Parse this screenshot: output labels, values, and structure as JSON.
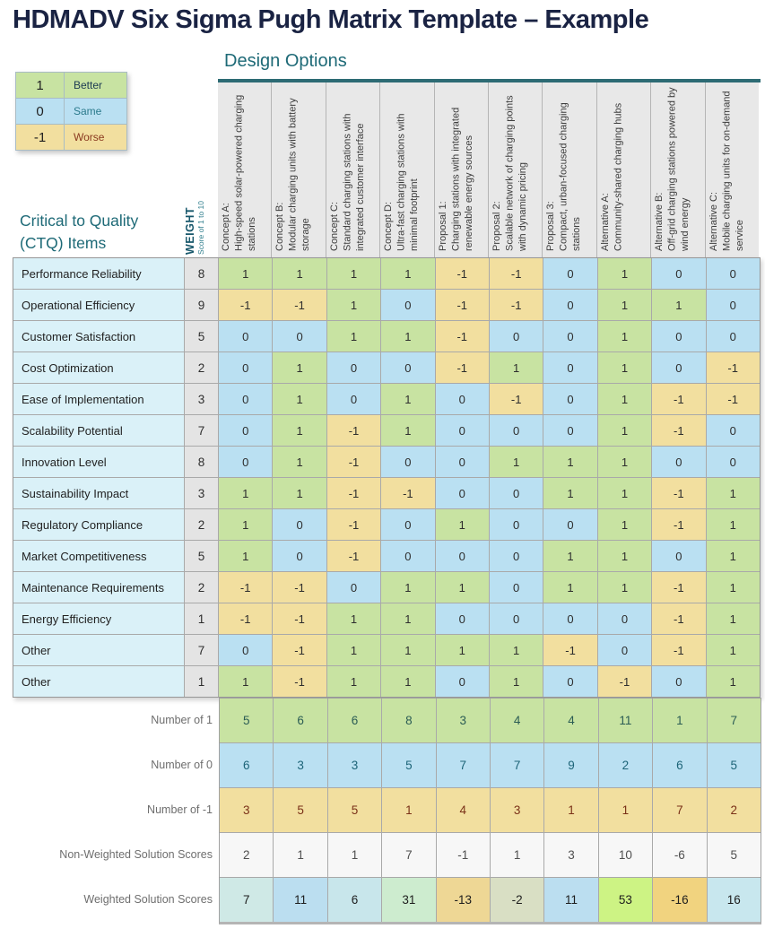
{
  "title": "HDMADV Six Sigma Pugh Matrix Template – Example",
  "design_options_label": "Design Options",
  "ctq_heading": "Critical to Quality (CTQ) Items",
  "weight_heading": {
    "title": "WEIGHT",
    "subtitle": "Score of 1 to 10"
  },
  "legend": [
    {
      "value": "1",
      "label": "Better",
      "style": "better",
      "label_color": "#1d3b53"
    },
    {
      "value": "0",
      "label": "Same",
      "style": "same",
      "label_color": "#2b7a8c"
    },
    {
      "value": "-1",
      "label": "Worse",
      "style": "worse",
      "label_color": "#8a3a20"
    }
  ],
  "design_options": [
    {
      "name": "Concept A:",
      "description": "High-speed solar-powered charging stations"
    },
    {
      "name": "Concept B:",
      "description": "Modular charging units with battery storage"
    },
    {
      "name": "Concept C:",
      "description": "Standard charging stations with integrated customer interface"
    },
    {
      "name": "Concept D:",
      "description": "Ultra-fast charging stations with minimal footprint"
    },
    {
      "name": "Proposal 1:",
      "description": "Charging stations with integrated renewable energy sources"
    },
    {
      "name": "Proposal 2:",
      "description": "Scalable network of charging points with dynamic pricing"
    },
    {
      "name": "Proposal 3:",
      "description": "Compact, urban-focused charging stations"
    },
    {
      "name": "Alternative A:",
      "description": "Community-shared charging hubs"
    },
    {
      "name": "Alternative B:",
      "description": "Off-grid charging stations powered by wind energy"
    },
    {
      "name": "Alternative C:",
      "description": "Mobile charging units for on-demand service"
    }
  ],
  "ctq_rows": [
    {
      "label": "Performance Reliability",
      "weight": 8,
      "scores": [
        1,
        1,
        1,
        1,
        -1,
        -1,
        0,
        1,
        0,
        0
      ]
    },
    {
      "label": "Operational Efficiency",
      "weight": 9,
      "scores": [
        -1,
        -1,
        1,
        0,
        -1,
        -1,
        0,
        1,
        1,
        0
      ]
    },
    {
      "label": "Customer Satisfaction",
      "weight": 5,
      "scores": [
        0,
        0,
        1,
        1,
        -1,
        0,
        0,
        1,
        0,
        0
      ]
    },
    {
      "label": "Cost Optimization",
      "weight": 2,
      "scores": [
        0,
        1,
        0,
        0,
        -1,
        1,
        0,
        1,
        0,
        -1
      ]
    },
    {
      "label": "Ease of Implementation",
      "weight": 3,
      "scores": [
        0,
        1,
        0,
        1,
        0,
        -1,
        0,
        1,
        -1,
        -1
      ]
    },
    {
      "label": "Scalability Potential",
      "weight": 7,
      "scores": [
        0,
        1,
        -1,
        1,
        0,
        0,
        0,
        1,
        -1,
        0
      ]
    },
    {
      "label": "Innovation Level",
      "weight": 8,
      "scores": [
        0,
        1,
        -1,
        0,
        0,
        1,
        1,
        1,
        0,
        0
      ]
    },
    {
      "label": "Sustainability Impact",
      "weight": 3,
      "scores": [
        1,
        1,
        -1,
        -1,
        0,
        0,
        1,
        1,
        -1,
        1
      ]
    },
    {
      "label": "Regulatory Compliance",
      "weight": 2,
      "scores": [
        1,
        0,
        -1,
        0,
        1,
        0,
        0,
        1,
        -1,
        1
      ]
    },
    {
      "label": "Market Competitiveness",
      "weight": 5,
      "scores": [
        1,
        0,
        -1,
        0,
        0,
        0,
        1,
        1,
        0,
        1
      ]
    },
    {
      "label": "Maintenance Requirements",
      "weight": 2,
      "scores": [
        -1,
        -1,
        0,
        1,
        1,
        0,
        1,
        1,
        -1,
        1
      ]
    },
    {
      "label": "Energy Efficiency",
      "weight": 1,
      "scores": [
        -1,
        -1,
        1,
        1,
        0,
        0,
        0,
        0,
        -1,
        1
      ]
    },
    {
      "label": "Other",
      "weight": 7,
      "scores": [
        0,
        -1,
        1,
        1,
        1,
        1,
        -1,
        0,
        -1,
        1
      ]
    },
    {
      "label": "Other",
      "weight": 1,
      "scores": [
        1,
        -1,
        1,
        1,
        0,
        1,
        0,
        -1,
        0,
        1
      ]
    }
  ],
  "summary_rows": [
    {
      "label": "Number of 1",
      "style": "better",
      "values": [
        5,
        6,
        6,
        8,
        3,
        4,
        4,
        11,
        1,
        7
      ]
    },
    {
      "label": "Number of 0",
      "style": "same",
      "values": [
        6,
        3,
        3,
        5,
        7,
        7,
        9,
        2,
        6,
        5
      ]
    },
    {
      "label": "Number of -1",
      "style": "worse",
      "values": [
        3,
        5,
        5,
        1,
        4,
        3,
        1,
        1,
        7,
        2
      ]
    },
    {
      "label": "Non-Weighted Solution Scores",
      "style": "plain",
      "values": [
        2,
        1,
        1,
        7,
        -1,
        1,
        3,
        10,
        -6,
        5
      ]
    },
    {
      "label": "Weighted Solution Scores",
      "style": "heatmap",
      "values": [
        7,
        11,
        6,
        31,
        -13,
        -2,
        11,
        53,
        -16,
        16
      ],
      "cell_colors": [
        "#cfe9e6",
        "#bbdef0",
        "#c8e6eb",
        "#cdeccf",
        "#eed795",
        "#d9dfc4",
        "#bbdef0",
        "#cdf384",
        "#f1d37f",
        "#c8e7ee"
      ]
    }
  ],
  "colors": {
    "better": "#c8e3a2",
    "same": "#bae0f2",
    "worse": "#f2df9f",
    "accent_teal": "#1e6a77",
    "title_navy": "#1a2343",
    "header_gray": "#e8e8e8"
  }
}
